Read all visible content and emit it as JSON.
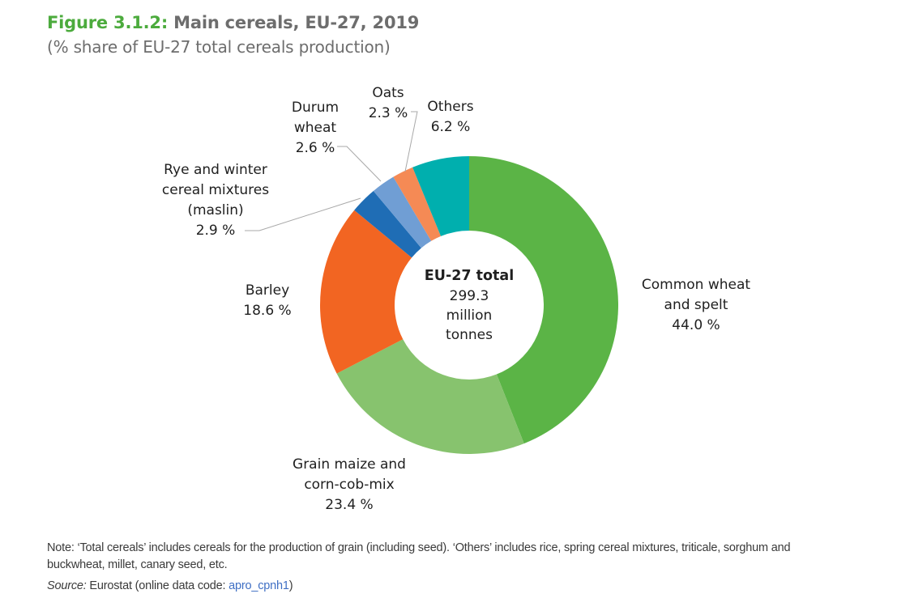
{
  "header": {
    "figure_label": "Figure 3.1.2:",
    "title": "Main cereals, EU-27, 2019",
    "subtitle": "(% share of EU-27 total cereals production)"
  },
  "chart_data": {
    "type": "pie",
    "variant": "donut",
    "title": "Main cereals, EU-27, 2019",
    "subtitle": "(% share of EU-27 total cereals production)",
    "unit": "%",
    "start": "top, clockwise",
    "center_label": {
      "title": "EU-27 total",
      "value": "299.3",
      "unit_line1": "million",
      "unit_line2": "tonnes"
    },
    "slices": [
      {
        "name": "Common wheat and spelt",
        "label_lines": [
          "Common wheat",
          "and spelt",
          "44.0 %"
        ],
        "value": 44.0,
        "color": "#5bb446"
      },
      {
        "name": "Grain maize and corn-cob-mix",
        "label_lines": [
          "Grain maize and",
          "corn-cob-mix",
          "23.4 %"
        ],
        "value": 23.4,
        "color": "#87c36e"
      },
      {
        "name": "Barley",
        "label_lines": [
          "Barley",
          "18.6 %"
        ],
        "value": 18.6,
        "color": "#f26522"
      },
      {
        "name": "Rye and winter cereal mixtures (maslin)",
        "label_lines": [
          "Rye and winter",
          "cereal mixtures",
          "(maslin)",
          "2.9 %"
        ],
        "value": 2.9,
        "color": "#1f6db5"
      },
      {
        "name": "Durum wheat",
        "label_lines": [
          "Durum",
          "wheat",
          "2.6 %"
        ],
        "value": 2.6,
        "color": "#709ed4"
      },
      {
        "name": "Oats",
        "label_lines": [
          "Oats",
          "2.3 %"
        ],
        "value": 2.3,
        "color": "#f58a55"
      },
      {
        "name": "Others",
        "label_lines": [
          "Others",
          "6.2 %"
        ],
        "value": 6.2,
        "color": "#00afae"
      }
    ]
  },
  "footer": {
    "note": "Note: ‘Total cereals’ includes cereals for the production of grain (including seed). ‘Others’ includes rice, spring cereal mixtures, triticale, sorghum and buckwheat, millet, canary seed, etc.",
    "source_label": "Source:",
    "source_text": " Eurostat (online data code: ",
    "source_link": "apro_cpnh1",
    "source_end": ")"
  }
}
